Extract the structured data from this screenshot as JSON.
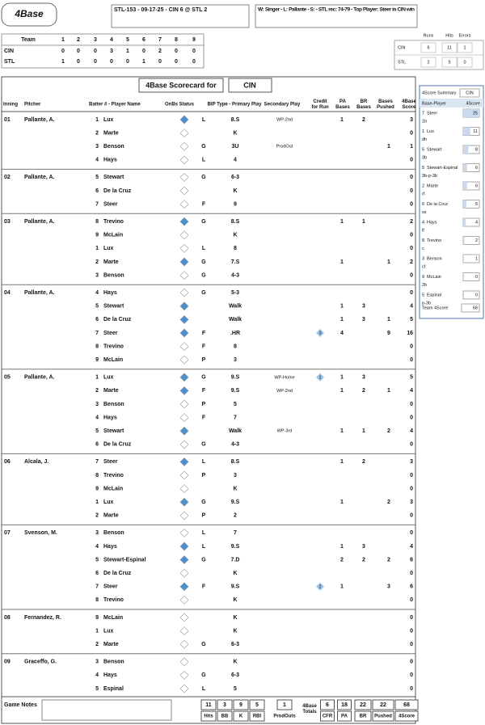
{
  "header": {
    "logo": "4Base",
    "game": "STL-153 - 09-17-25 - CIN 6 @ STL 2",
    "result": "W: Singer - L: Pallante - S: - STL rec: 74-79 - Top Player: Steer in CIN win"
  },
  "linescore": {
    "head": "Team",
    "innings": [
      "1",
      "2",
      "3",
      "4",
      "5",
      "6",
      "7",
      "8",
      "9"
    ],
    "rows": [
      {
        "team": "CIN",
        "runs": [
          0,
          0,
          0,
          3,
          1,
          0,
          2,
          0,
          0
        ]
      },
      {
        "team": "STL",
        "runs": [
          1,
          0,
          0,
          0,
          0,
          1,
          0,
          0,
          0
        ]
      }
    ]
  },
  "totals": {
    "columns": [
      "Runs",
      "Hits",
      "Errors"
    ],
    "rows": [
      {
        "team": "CIN",
        "values": [
          6,
          11,
          1
        ]
      },
      {
        "team": "STL",
        "values": [
          2,
          5,
          0
        ]
      }
    ]
  },
  "scorecard": {
    "title": "4Base Scorecard for",
    "team": "CIN",
    "columns": [
      "Inning",
      "Pitcher",
      "Batter # - Player Name",
      "OnBs Status",
      "BIP Type - Primary Play",
      "Secondary Play",
      "Credit for Run",
      "PA Bases",
      "BR Bases",
      "Bases Pushed",
      "4Base Score"
    ],
    "innings": [
      {
        "inning": "01",
        "pitcher": "Pallante, A.",
        "rows": [
          {
            "num": "1",
            "name": "Lux",
            "bip": "L",
            "play": "8.S",
            "sec": "WP-2nd",
            "pa": 1,
            "br": 2,
            "score": 3
          },
          {
            "num": "2",
            "name": "Marte",
            "play": "K",
            "score": 0
          },
          {
            "num": "3",
            "name": "Benson",
            "bip": "G",
            "play": "3U",
            "sec": "ProdOut",
            "pushed": 1,
            "score": 1
          },
          {
            "num": "4",
            "name": "Hays",
            "bip": "L",
            "play": "4",
            "score": 0
          }
        ]
      },
      {
        "inning": "02",
        "pitcher": "Pallante, A.",
        "rows": [
          {
            "num": "5",
            "name": "Stewart",
            "bip": "G",
            "play": "6-3",
            "score": 0
          },
          {
            "num": "6",
            "name": "De la Cruz",
            "play": "K",
            "score": 0
          },
          {
            "num": "7",
            "name": "Steer",
            "bip": "F",
            "play": "9",
            "score": 0
          }
        ]
      },
      {
        "inning": "03",
        "pitcher": "Pallante, A.",
        "rows": [
          {
            "num": "8",
            "name": "Trevino",
            "bip": "G",
            "play": "8.S",
            "pa": 1,
            "br": 1,
            "score": 2
          },
          {
            "num": "9",
            "name": "McLain",
            "play": "K",
            "score": 0
          },
          {
            "num": "1",
            "name": "Lux",
            "bip": "L",
            "play": "8",
            "score": 0
          },
          {
            "num": "2",
            "name": "Marte",
            "bip": "G",
            "play": "7.S",
            "pa": 1,
            "pushed": 1,
            "score": 2
          },
          {
            "num": "3",
            "name": "Benson",
            "bip": "G",
            "play": "4-3",
            "score": 0
          }
        ]
      },
      {
        "inning": "04",
        "pitcher": "Pallante, A.",
        "rows": [
          {
            "num": "4",
            "name": "Hays",
            "bip": "G",
            "play": "5-3",
            "score": 0
          },
          {
            "num": "5",
            "name": "Stewart",
            "play": "Walk",
            "pa": 1,
            "br": 3,
            "score": 4
          },
          {
            "num": "6",
            "name": "De la Cruz",
            "play": "Walk",
            "pa": 1,
            "br": 3,
            "pushed": 1,
            "score": 5
          },
          {
            "num": "7",
            "name": "Steer",
            "bip": "F",
            "play": ".HR",
            "credit": 3,
            "pa": 4,
            "pushed": 9,
            "score": 16
          },
          {
            "num": "8",
            "name": "Trevino",
            "bip": "F",
            "play": "8",
            "score": 0
          },
          {
            "num": "9",
            "name": "McLain",
            "bip": "P",
            "play": "3",
            "score": 0
          }
        ]
      },
      {
        "inning": "05",
        "pitcher": "Pallante, A.",
        "rows": [
          {
            "num": "1",
            "name": "Lux",
            "bip": "G",
            "play": "9.S",
            "sec": "WP-Home",
            "credit": 1,
            "pa": 1,
            "br": 3,
            "score": 5
          },
          {
            "num": "2",
            "name": "Marte",
            "bip": "F",
            "play": "9.S",
            "sec": "WP-2nd",
            "pa": 1,
            "br": 2,
            "pushed": 1,
            "score": 4
          },
          {
            "num": "3",
            "name": "Benson",
            "bip": "P",
            "play": "5",
            "score": 0
          },
          {
            "num": "4",
            "name": "Hays",
            "bip": "F",
            "play": "7",
            "score": 0
          },
          {
            "num": "5",
            "name": "Stewart",
            "play": "Walk",
            "sec": "WP-3rd",
            "pa": 1,
            "br": 1,
            "pushed": 2,
            "score": 4
          },
          {
            "num": "6",
            "name": "De la Cruz",
            "bip": "G",
            "play": "4-3",
            "score": 0
          }
        ]
      },
      {
        "inning": "06",
        "pitcher": "Alcala, J.",
        "rows": [
          {
            "num": "7",
            "name": "Steer",
            "bip": "L",
            "play": "8.S",
            "pa": 1,
            "br": 2,
            "score": 3
          },
          {
            "num": "8",
            "name": "Trevino",
            "bip": "P",
            "play": "3",
            "score": 0
          },
          {
            "num": "9",
            "name": "McLain",
            "play": "K",
            "score": 0
          },
          {
            "num": "1",
            "name": "Lux",
            "bip": "G",
            "play": "9.S",
            "pa": 1,
            "pushed": 2,
            "score": 3
          },
          {
            "num": "2",
            "name": "Marte",
            "bip": "P",
            "play": "2",
            "score": 0
          }
        ]
      },
      {
        "inning": "07",
        "pitcher": "Svenson, M.",
        "rows": [
          {
            "num": "3",
            "name": "Benson",
            "bip": "L",
            "play": "7",
            "score": 0
          },
          {
            "num": "4",
            "name": "Hays",
            "bip": "L",
            "play": "9.S",
            "pa": 1,
            "br": 3,
            "score": 4
          },
          {
            "num": "5",
            "name": "Stewart-Espinal",
            "bip": "G",
            "play": "7.D",
            "pa": 2,
            "br": 2,
            "pushed": 2,
            "score": 6
          },
          {
            "num": "6",
            "name": "De la Cruz",
            "play": "K",
            "score": 0
          },
          {
            "num": "7",
            "name": "Steer",
            "bip": "F",
            "play": "9.S",
            "credit": 2,
            "pa": 1,
            "pushed": 3,
            "score": 6
          },
          {
            "num": "8",
            "name": "Trevino",
            "play": "K",
            "score": 0
          }
        ]
      },
      {
        "inning": "08",
        "pitcher": "Fernandez, R.",
        "rows": [
          {
            "num": "9",
            "name": "McLain",
            "play": "K",
            "score": 0
          },
          {
            "num": "1",
            "name": "Lux",
            "play": "K",
            "score": 0
          },
          {
            "num": "2",
            "name": "Marte",
            "bip": "G",
            "play": "6-3",
            "score": 0
          }
        ]
      },
      {
        "inning": "09",
        "pitcher": "Graceffo, G.",
        "rows": [
          {
            "num": "3",
            "name": "Benson",
            "play": "K",
            "score": 0
          },
          {
            "num": "4",
            "name": "Hays",
            "bip": "G",
            "play": "6-3",
            "score": 0
          },
          {
            "num": "5",
            "name": "Espinal",
            "bip": "L",
            "play": "5",
            "score": 0
          }
        ]
      }
    ]
  },
  "footer": {
    "notes_label": "Game Notes",
    "stats": [
      {
        "label": "Hits",
        "value": 11
      },
      {
        "label": "BB",
        "value": 3
      },
      {
        "label": "K",
        "value": 9
      },
      {
        "label": "RBI",
        "value": 5
      }
    ],
    "prodouts": {
      "label": "ProdOuts",
      "value": 1
    },
    "totals_label": "4Base Totals",
    "totals": [
      {
        "label": "CFR",
        "value": 6
      },
      {
        "label": "PA",
        "value": 18
      },
      {
        "label": "BR",
        "value": 22
      },
      {
        "label": "Pushed",
        "value": 22
      },
      {
        "label": "4Score",
        "value": 68
      }
    ]
  },
  "summary": {
    "title": "4Score Summary",
    "team": "CIN",
    "col_player": "Base-Player",
    "col_score": "4Score",
    "players": [
      {
        "num": "7",
        "name": "Steer",
        "pos": "1b",
        "score": 25
      },
      {
        "num": "1",
        "name": "Lux",
        "pos": "dh",
        "score": 11
      },
      {
        "num": "5",
        "name": "Stewart",
        "pos": "3b",
        "score": 8
      },
      {
        "num": "5",
        "name": "Stewart-Espinal",
        "pos": "3b-p-3b",
        "score": 6
      },
      {
        "num": "2",
        "name": "Marte",
        "pos": "rf",
        "score": 6
      },
      {
        "num": "6",
        "name": "De la Cruz",
        "pos": "ss",
        "score": 5
      },
      {
        "num": "4",
        "name": "Hays",
        "pos": "lf",
        "score": 4
      },
      {
        "num": "8",
        "name": "Trevino",
        "pos": "c",
        "score": 2
      },
      {
        "num": "3",
        "name": "Benson",
        "pos": "cf",
        "score": 1
      },
      {
        "num": "9",
        "name": "McLain",
        "pos": "2b",
        "score": 0
      },
      {
        "num": "5",
        "name": "Espinal",
        "pos": "p-3b",
        "score": 0
      }
    ],
    "team_label": "Team 4Score",
    "team_score": 68
  }
}
